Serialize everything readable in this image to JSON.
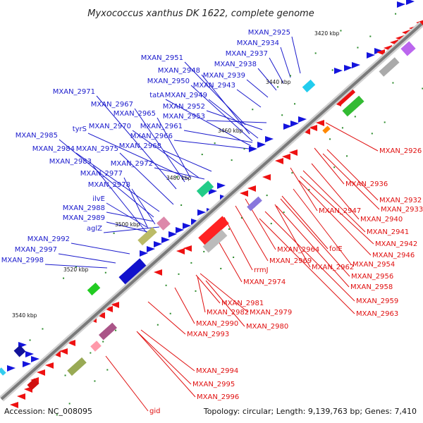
{
  "title": "Myxococcus xanthus DK 1622, complete genome",
  "footer": {
    "accession": "Accession: NC_008095",
    "topology": "Topology: circular; Length: 9,139,763 bp; Genes: 7,410"
  },
  "colors": {
    "forward_label": "#1a1acc",
    "reverse_label": "#e01010",
    "backbone": "#7a7a7a",
    "tick": "#2a8a2a"
  },
  "scale_ticks": [
    "3420 kbp",
    "3440 kbp",
    "3460 kbp",
    "3480 kbp",
    "3500 kbp",
    "3520 kbp",
    "3540 kbp"
  ],
  "forward_labels": [
    "MXAN_2925",
    "MXAN_2934",
    "MXAN_2937",
    "MXAN_2938",
    "MXAN_2939",
    "MXAN_2943",
    "MXAN_2951",
    "MXAN_2948",
    "MXAN_2950",
    "tatA",
    "MXAN_2949",
    "MXAN_2952",
    "MXAN_2953",
    "MXAN_2971",
    "MXAN_2967",
    "MXAN_2965",
    "tyrS",
    "MXAN_2970",
    "MXAN_2961",
    "MXAN_2966",
    "MXAN_2985",
    "MXAN_2984",
    "MXAN_2975",
    "MXAN_2968",
    "MXAN_2983",
    "MXAN_2972",
    "MXAN_2977",
    "MXAN_2978",
    "ilvE",
    "MXAN_2988",
    "MXAN_2989",
    "aglZ",
    "MXAN_2992",
    "MXAN_2997",
    "MXAN_2998"
  ],
  "reverse_labels": [
    "MXAN_2926",
    "MXAN_2936",
    "MXAN_2932",
    "MXAN_2933",
    "MXAN_2947",
    "MXAN_2940",
    "MXAN_2941",
    "MXAN_2942",
    "MXAN_2946",
    "MXAN_2964",
    "folE",
    "MXAN_2969",
    "MXAN_2962",
    "MXAN_2954",
    "rrmJ",
    "MXAN_2956",
    "MXAN_2974",
    "MXAN_2958",
    "MXAN_2959",
    "MXAN_2963",
    "MXAN_2981",
    "MXAN_2982",
    "MXAN_2979",
    "MXAN_2990",
    "MXAN_2980",
    "MXAN_2993",
    "MXAN_2994",
    "MXAN_2995",
    "MXAN_2996",
    "gid"
  ]
}
